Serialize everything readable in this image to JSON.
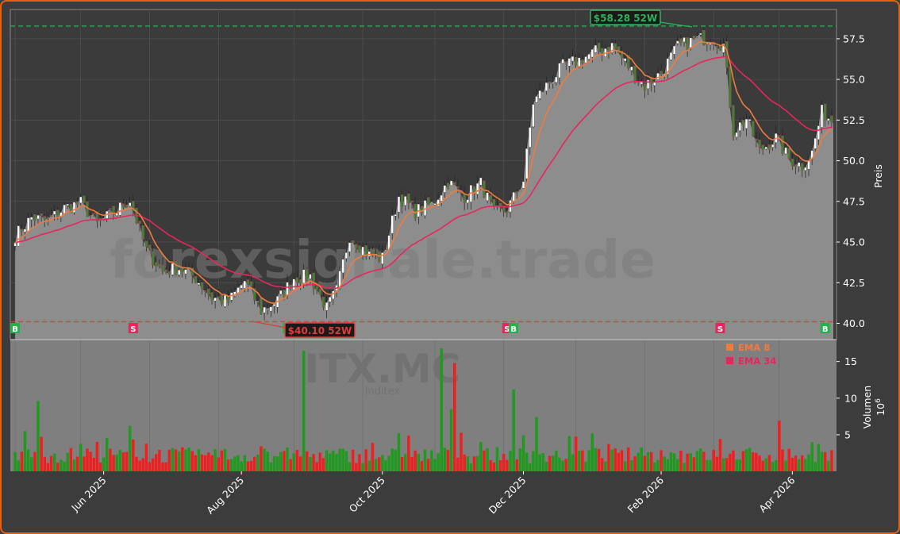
{
  "chart_data": {
    "type": "candlestick",
    "watermark": "forexsignale.trade",
    "ticker_watermark": "ITX.MC",
    "ticker_sub": "Inditex",
    "price_axis": {
      "label": "Preis",
      "ylim": [
        39.0,
        59.3
      ],
      "ticks": [
        "40.0",
        "42.5",
        "45.0",
        "47.5",
        "50.0",
        "52.5",
        "55.0",
        "57.5"
      ]
    },
    "volume_axis": {
      "label": "Volumen",
      "multiplier": "10",
      "exponent": "6",
      "ylim": [
        0,
        18
      ],
      "ticks": [
        "5",
        "10",
        "15"
      ]
    },
    "x_ticks": [
      "Jun 2025",
      "Aug 2025",
      "Oct 2025",
      "Dec 2025",
      "Feb 2026",
      "Apr 2026"
    ],
    "legend": [
      {
        "name": "EMA 8",
        "color": "#f07b3f"
      },
      {
        "name": "EMA 34",
        "color": "#e8265e"
      }
    ],
    "high_52w": {
      "label": "$58.28 52W",
      "value": 58.28
    },
    "low_52w": {
      "label": "$40.10 52W",
      "value": 40.1
    },
    "signals": [
      {
        "type": "B",
        "date_index": 0
      },
      {
        "type": "S",
        "date_index": 36
      },
      {
        "type": "B",
        "date_index": 83
      },
      {
        "type": "S",
        "date_index": 90
      },
      {
        "type": "B",
        "date_index": 98
      },
      {
        "type": "S",
        "date_index": 150
      },
      {
        "type": "B",
        "date_index": 152
      },
      {
        "type": "S",
        "date_index": 215
      },
      {
        "type": "B",
        "date_index": 247
      }
    ],
    "close_keypoints": [
      [
        0,
        45.4
      ],
      [
        5,
        46.5
      ],
      [
        10,
        46.3
      ],
      [
        15,
        47.1
      ],
      [
        20,
        47.4
      ],
      [
        25,
        46.1
      ],
      [
        30,
        46.8
      ],
      [
        35,
        47.6
      ],
      [
        40,
        44.5
      ],
      [
        45,
        43.2
      ],
      [
        50,
        43.4
      ],
      [
        55,
        42.8
      ],
      [
        60,
        41.6
      ],
      [
        65,
        41.3
      ],
      [
        70,
        42.6
      ],
      [
        75,
        40.8
      ],
      [
        80,
        41.4
      ],
      [
        85,
        42.8
      ],
      [
        90,
        42.9
      ],
      [
        95,
        40.9
      ],
      [
        98,
        42.0
      ],
      [
        102,
        45.4
      ],
      [
        108,
        44.2
      ],
      [
        112,
        44.0
      ],
      [
        117,
        47.8
      ],
      [
        122,
        46.9
      ],
      [
        127,
        47.3
      ],
      [
        132,
        48.7
      ],
      [
        137,
        47.8
      ],
      [
        142,
        48.6
      ],
      [
        146,
        46.8
      ],
      [
        150,
        47.0
      ],
      [
        155,
        48.8
      ],
      [
        158,
        53.6
      ],
      [
        162,
        54.6
      ],
      [
        167,
        55.8
      ],
      [
        172,
        56.2
      ],
      [
        177,
        56.7
      ],
      [
        182,
        57.1
      ],
      [
        187,
        55.8
      ],
      [
        192,
        54.6
      ],
      [
        197,
        55.4
      ],
      [
        202,
        57.0
      ],
      [
        207,
        57.4
      ],
      [
        212,
        57.6
      ],
      [
        216,
        57.1
      ],
      [
        219,
        51.8
      ],
      [
        223,
        52.6
      ],
      [
        227,
        50.6
      ],
      [
        232,
        51.4
      ],
      [
        236,
        50.1
      ],
      [
        240,
        49.7
      ],
      [
        243,
        50.5
      ],
      [
        246,
        53.0
      ],
      [
        249,
        52.5
      ]
    ],
    "n_bars": 250
  }
}
